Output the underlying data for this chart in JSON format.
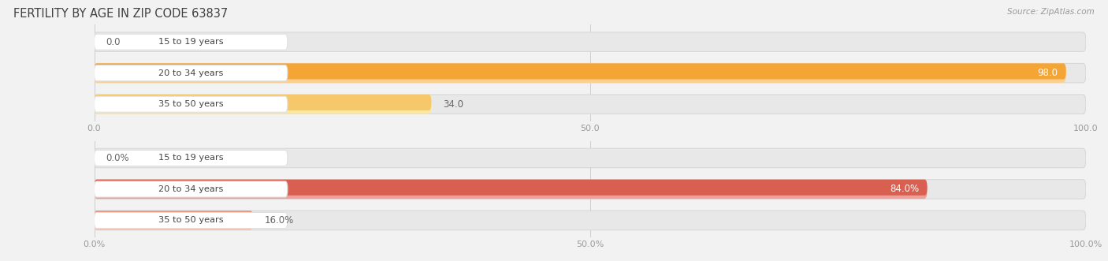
{
  "title": "FERTILITY BY AGE IN ZIP CODE 63837",
  "source": "Source: ZipAtlas.com",
  "chart1": {
    "categories": [
      "15 to 19 years",
      "20 to 34 years",
      "35 to 50 years"
    ],
    "values": [
      0.0,
      98.0,
      34.0
    ],
    "max_val": 100.0,
    "bar_colors": [
      "#f7c89c",
      "#f5a535",
      "#f7c86a"
    ],
    "bar_light_colors": [
      "#fde8cc",
      "#fcd090",
      "#fde8a0"
    ],
    "label_inside_color": "#ffffff",
    "label_outside_color": "#666666",
    "x_ticks": [
      0.0,
      50.0,
      100.0
    ],
    "x_tick_labels": [
      "0.0",
      "50.0",
      "100.0"
    ],
    "has_percent": false
  },
  "chart2": {
    "categories": [
      "15 to 19 years",
      "20 to 34 years",
      "35 to 50 years"
    ],
    "values": [
      0.0,
      84.0,
      16.0
    ],
    "max_val": 100.0,
    "bar_colors": [
      "#e8a090",
      "#d96050",
      "#e89078"
    ],
    "bar_light_colors": [
      "#f5d0c8",
      "#f0a098",
      "#f5c0b0"
    ],
    "label_inside_color": "#ffffff",
    "label_outside_color": "#666666",
    "x_ticks": [
      0.0,
      50.0,
      100.0
    ],
    "x_tick_labels": [
      "0.0%",
      "50.0%",
      "100.0%"
    ],
    "has_percent": true
  },
  "bg_color": "#f2f2f2",
  "bar_bg_color": "#e8e8e8",
  "bar_bg_border": "#d8d8d8",
  "label_pill_bg": "#ffffff",
  "label_pill_edge": "#e0e0e0",
  "grid_color": "#cccccc",
  "tick_color": "#999999",
  "title_color": "#404040",
  "source_color": "#999999",
  "bar_height": 0.62,
  "bar_rounding": 0.31
}
